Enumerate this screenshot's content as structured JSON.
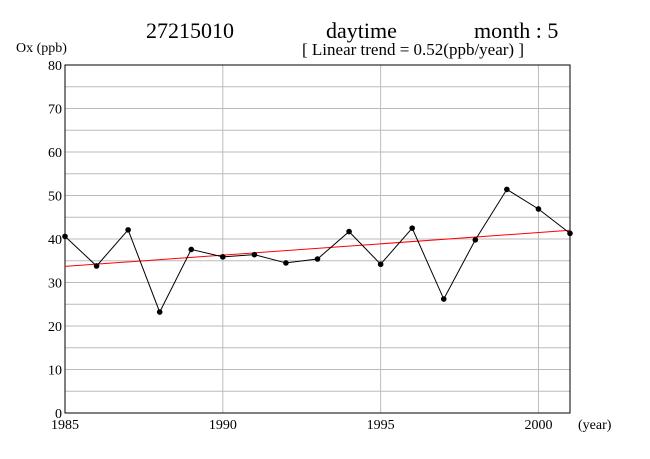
{
  "header": {
    "station": "27215010",
    "period": "daytime",
    "month": "month : 5",
    "trend": "[ Linear trend = 0.52(ppb/year) ]"
  },
  "chart_data": {
    "type": "line",
    "ylabel": "Ox (ppb)",
    "xlabel": "(year)",
    "xlim": [
      1985,
      2001
    ],
    "ylim": [
      0,
      80
    ],
    "x_ticks": [
      1985,
      1990,
      1995,
      2000
    ],
    "y_ticks": [
      0,
      10,
      20,
      30,
      40,
      50,
      60,
      70,
      80
    ],
    "grid": true,
    "x": [
      1985,
      1986,
      1987,
      1988,
      1989,
      1990,
      1991,
      1992,
      1993,
      1994,
      1995,
      1996,
      1997,
      1998,
      1999,
      2000,
      2001
    ],
    "series": [
      {
        "values": [
          40.6,
          33.8,
          42.1,
          23.2,
          37.6,
          35.9,
          36.4,
          34.5,
          35.4,
          41.7,
          34.2,
          42.5,
          26.2,
          39.8,
          51.4,
          46.9,
          41.3
        ],
        "color": "#000000",
        "marker": "dot"
      }
    ],
    "trend_line": {
      "x": [
        1985,
        2001
      ],
      "y": [
        33.7,
        42.0
      ],
      "color": "#ff0000"
    }
  }
}
